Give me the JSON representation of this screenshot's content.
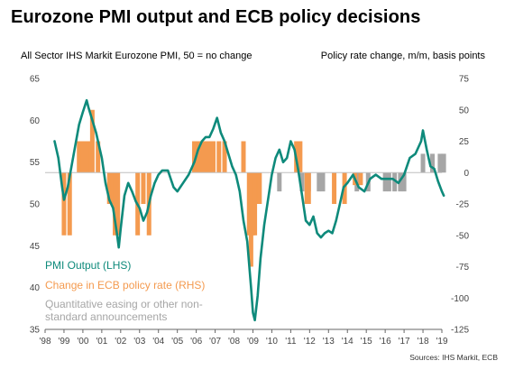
{
  "title": "Eurozone PMI output and ECB policy decisions",
  "left_axis_title": "All Sector IHS Markit Eurozone PMI, 50 = no change",
  "right_axis_title": "Policy rate change, m/m, basis points",
  "source": "Sources: IHS Markit, ECB",
  "colors": {
    "pmi": "#0e8a7b",
    "rate": "#f49a4f",
    "qe": "#a6a6a6",
    "zero": "#bfbfbf"
  },
  "chart_data": {
    "type": "line",
    "title": "Eurozone PMI output and ECB policy decisions",
    "legend_position": "bottom-left",
    "x_ticks": [
      "'98",
      "'99",
      "'00",
      "'01",
      "'02",
      "'03",
      "'04",
      "'05",
      "'06",
      "'07",
      "'08",
      "'09",
      "'10",
      "'11",
      "'12",
      "'13",
      "'14",
      "'15",
      "'16",
      "'17",
      "'18",
      "'19"
    ],
    "y_left": {
      "label": "All Sector IHS Markit Eurozone PMI, 50 = no change",
      "min": 35,
      "max": 65,
      "ticks": [
        35,
        40,
        45,
        50,
        55,
        60,
        65
      ]
    },
    "y_right": {
      "label": "Policy rate change, m/m, basis points",
      "min": -125,
      "max": 75,
      "ticks": [
        -125,
        -100,
        -75,
        -50,
        -25,
        0,
        25,
        50,
        75
      ]
    },
    "series": [
      {
        "name": "PMI  Output (LHS)",
        "axis": "left",
        "x": [
          1998.5,
          1998.7,
          1998.9,
          1999.0,
          1999.2,
          1999.4,
          1999.6,
          1999.8,
          2000.0,
          2000.2,
          2000.3,
          2000.5,
          2000.7,
          2000.9,
          2001.0,
          2001.2,
          2001.4,
          2001.6,
          2001.8,
          2001.9,
          2002.0,
          2002.2,
          2002.4,
          2002.6,
          2002.8,
          2003.0,
          2003.2,
          2003.4,
          2003.6,
          2003.8,
          2004.0,
          2004.2,
          2004.5,
          2004.8,
          2005.0,
          2005.3,
          2005.6,
          2005.9,
          2006.1,
          2006.3,
          2006.5,
          2006.7,
          2006.9,
          2007.1,
          2007.3,
          2007.5,
          2007.7,
          2007.9,
          2008.1,
          2008.3,
          2008.5,
          2008.7,
          2008.9,
          2009.0,
          2009.1,
          2009.25,
          2009.4,
          2009.6,
          2009.8,
          2010.0,
          2010.2,
          2010.4,
          2010.6,
          2010.8,
          2011.0,
          2011.2,
          2011.4,
          2011.6,
          2011.8,
          2012.0,
          2012.2,
          2012.4,
          2012.6,
          2012.8,
          2013.0,
          2013.2,
          2013.4,
          2013.6,
          2013.8,
          2014.0,
          2014.3,
          2014.6,
          2014.9,
          2015.2,
          2015.5,
          2015.8,
          2016.1,
          2016.4,
          2016.7,
          2017.0,
          2017.3,
          2017.6,
          2017.9,
          2018.0,
          2018.2,
          2018.4,
          2018.6,
          2018.8,
          2019.0,
          2019.1
        ],
        "values": [
          57.5,
          55.5,
          52.0,
          50.5,
          52.0,
          54.5,
          57.0,
          59.5,
          61.0,
          62.4,
          61.5,
          60.0,
          58.5,
          56.5,
          55.5,
          52.5,
          50.5,
          49.5,
          46.5,
          44.8,
          47.0,
          51.0,
          52.5,
          51.5,
          50.3,
          49.5,
          48.0,
          49.0,
          51.0,
          52.5,
          53.5,
          54.0,
          54.0,
          52.0,
          51.5,
          52.5,
          53.5,
          55.0,
          56.5,
          57.5,
          58.0,
          58.0,
          59.0,
          60.3,
          58.5,
          57.5,
          56.0,
          54.5,
          53.5,
          51.5,
          48.0,
          45.5,
          40.0,
          37.0,
          36.1,
          39.0,
          43.5,
          47.5,
          50.5,
          53.5,
          55.5,
          56.5,
          55.0,
          55.5,
          57.5,
          56.5,
          54.0,
          51.0,
          48.0,
          47.5,
          48.5,
          46.5,
          46.0,
          46.5,
          46.8,
          46.5,
          48.0,
          50.0,
          52.0,
          52.5,
          53.5,
          52.0,
          51.5,
          53.0,
          53.5,
          53.0,
          53.0,
          53.0,
          52.5,
          53.5,
          55.5,
          56.0,
          57.5,
          58.8,
          56.5,
          54.5,
          54.2,
          52.7,
          51.5,
          51.0
        ]
      },
      {
        "name": "Change in ECB policy rate (RHS)",
        "axis": "right",
        "type": "bar",
        "x": [
          1999.0,
          1999.3,
          1999.8,
          2000.0,
          2000.1,
          2000.3,
          2000.45,
          2000.5,
          2000.8,
          2001.4,
          2001.6,
          2001.7,
          2001.85,
          2002.9,
          2003.2,
          2003.5,
          2005.9,
          2006.1,
          2006.2,
          2006.4,
          2006.5,
          2006.6,
          2006.8,
          2006.9,
          2007.2,
          2007.5,
          2008.5,
          2008.8,
          2008.9,
          2009.0,
          2009.1,
          2009.3,
          2009.35,
          2011.3,
          2011.5,
          2011.85,
          2011.95,
          2013.3,
          2013.85,
          2014.4,
          2014.7
        ],
        "values": [
          -50,
          -50,
          25,
          25,
          25,
          25,
          25,
          50,
          25,
          -25,
          -25,
          -50,
          -50,
          -50,
          -25,
          -50,
          25,
          25,
          25,
          25,
          25,
          25,
          25,
          25,
          25,
          25,
          25,
          -50,
          -75,
          -50,
          -50,
          -25,
          -25,
          25,
          25,
          -25,
          -25,
          -25,
          -25,
          -10,
          -10
        ]
      },
      {
        "name": "Quantitative easing or other non-standard announcements",
        "axis": "right",
        "type": "bar",
        "x": [
          2010.4,
          2011.6,
          2011.95,
          2012.5,
          2012.7,
          2014.5,
          2015.1,
          2016.0,
          2016.2,
          2016.5,
          2016.8,
          2017.0,
          2018.0,
          2018.5,
          2018.9,
          2019.1
        ],
        "values": [
          -15,
          -15,
          -15,
          -15,
          -15,
          -15,
          -15,
          -15,
          -15,
          -15,
          -15,
          -15,
          15,
          15,
          15,
          15
        ]
      }
    ]
  }
}
